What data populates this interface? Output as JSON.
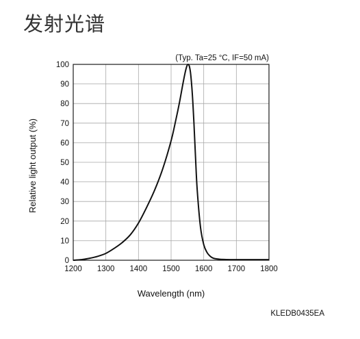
{
  "page": {
    "title": "发射光谱",
    "code": "KLEDB0435EA"
  },
  "chart_data": {
    "type": "line",
    "conditions": "(Typ. Ta=25 °C, IF=50 mA)",
    "xlabel": "Wavelength (nm)",
    "ylabel": "Relative light output (%)",
    "xlim": [
      1200,
      1800
    ],
    "ylim": [
      0,
      100
    ],
    "grid": true,
    "x_ticks": [
      1200,
      1300,
      1400,
      1500,
      1600,
      1700,
      1800
    ],
    "y_ticks": [
      0,
      10,
      20,
      30,
      40,
      50,
      60,
      70,
      80,
      90,
      100
    ],
    "series": [
      {
        "x": [
          1200,
          1225,
          1250,
          1275,
          1300,
          1325,
          1350,
          1375,
          1400,
          1425,
          1450,
          1475,
          1500,
          1515,
          1525,
          1535,
          1542,
          1548,
          1552,
          1556,
          1560,
          1565,
          1570,
          1575,
          1580,
          1590,
          1600,
          1610,
          1620,
          1630,
          1650,
          1700,
          1750,
          1800
        ],
        "y": [
          0,
          0.3,
          1,
          2,
          3.5,
          6,
          9,
          13,
          19,
          27,
          36,
          47,
          61,
          72,
          80,
          89,
          95,
          99,
          100,
          99,
          95,
          85,
          70,
          52,
          36,
          17,
          8,
          4,
          2,
          1,
          0.5,
          0.3,
          0.3,
          0.3
        ]
      }
    ]
  }
}
